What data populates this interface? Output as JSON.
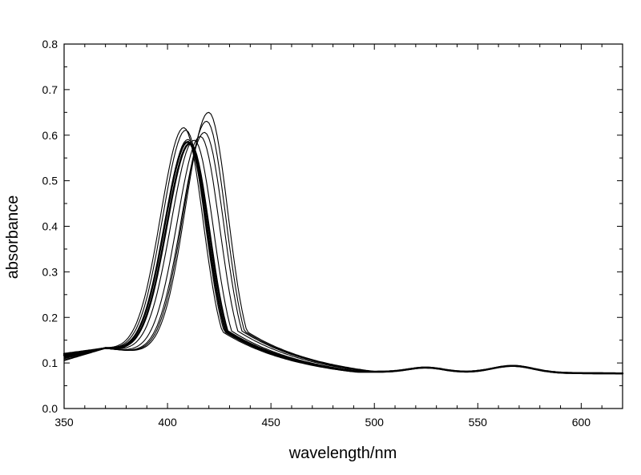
{
  "chart_data": {
    "type": "line",
    "title": "",
    "xlabel": "wavelength/nm",
    "ylabel": "absorbance",
    "xlim": [
      350,
      620
    ],
    "ylim": [
      0.0,
      0.8
    ],
    "x_ticks": [
      350,
      400,
      450,
      500,
      550,
      600
    ],
    "y_ticks": [
      0.0,
      0.1,
      0.2,
      0.3,
      0.4,
      0.5,
      0.6,
      0.7,
      0.8
    ],
    "x_tick_labels": [
      "350",
      "400",
      "450",
      "500",
      "550",
      "600"
    ],
    "y_tick_labels": [
      "0.0",
      "0.1",
      "0.2",
      "0.3",
      "0.4",
      "0.5",
      "0.6",
      "0.7",
      "0.8"
    ],
    "grid": false,
    "legend": "none",
    "line_color": "#000000",
    "series": [
      {
        "peak_x": 420,
        "peak_y": 0.665,
        "start_y": 0.175
      },
      {
        "peak_x": 419,
        "peak_y": 0.645,
        "start_y": 0.178
      },
      {
        "peak_x": 418,
        "peak_y": 0.62,
        "start_y": 0.182
      },
      {
        "peak_x": 416,
        "peak_y": 0.61,
        "start_y": 0.185
      },
      {
        "peak_x": 413,
        "peak_y": 0.6,
        "start_y": 0.188
      },
      {
        "peak_x": 410,
        "peak_y": 0.6,
        "start_y": 0.19
      },
      {
        "peak_x": 409,
        "peak_y": 0.62,
        "start_y": 0.192
      },
      {
        "peak_x": 408,
        "peak_y": 0.625,
        "start_y": 0.195
      },
      {
        "peak_x": 410,
        "peak_y": 0.595,
        "start_y": 0.195
      },
      {
        "peak_x": 411,
        "peak_y": 0.592,
        "start_y": 0.2
      }
    ]
  }
}
